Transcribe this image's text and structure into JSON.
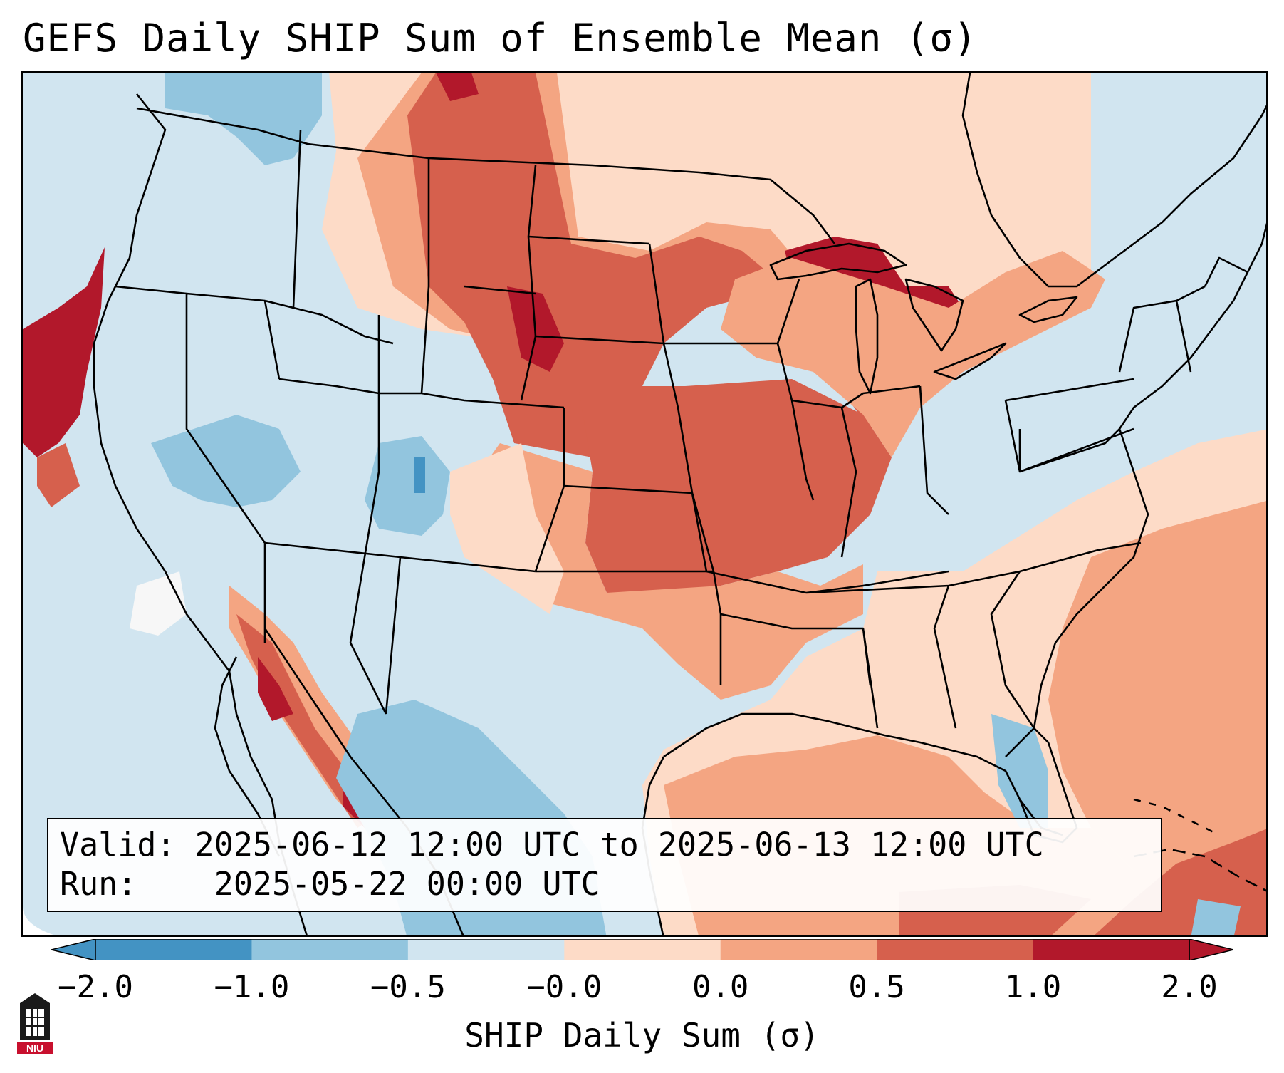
{
  "title": "GEFS Daily SHIP Sum of Ensemble Mean (σ)",
  "info": {
    "valid_label": "Valid:",
    "valid_value": "2025-06-12 12:00 UTC to 2025-06-13 12:00 UTC",
    "run_label": "Run:",
    "run_value": "2025-05-22 00:00 UTC"
  },
  "colorbar": {
    "label": "SHIP Daily Sum (σ)",
    "ticks": [
      "−2.0",
      "−1.0",
      "−0.5",
      "−0.0",
      "0.0",
      "0.5",
      "1.0",
      "2.0"
    ],
    "colors": [
      "#4393c3",
      "#92c5de",
      "#d1e5f0",
      "#f7f7f7",
      "#fddbc7",
      "#f4a582",
      "#d6604d",
      "#b2182b"
    ],
    "extend": "both"
  },
  "logo": {
    "text": "NIU",
    "color": "#c8102e"
  }
}
